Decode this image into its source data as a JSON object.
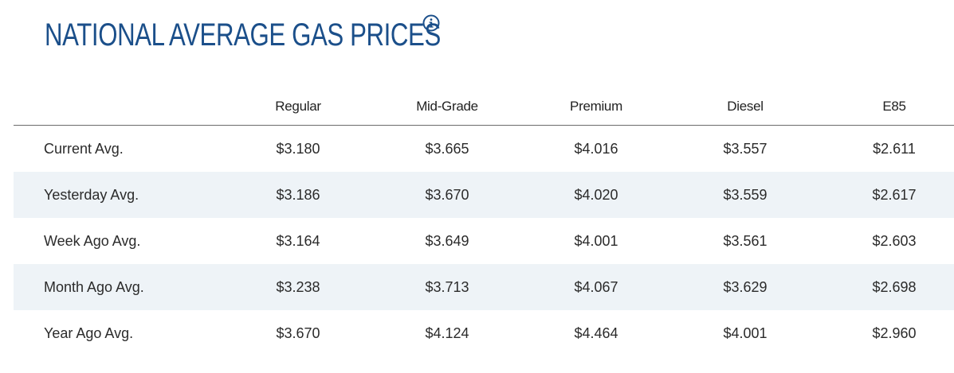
{
  "header": {
    "title": "NATIONAL AVERAGE GAS PRICES",
    "info_icon": "info-circle-icon",
    "title_color": "#1b4f8a"
  },
  "table": {
    "columns": [
      "Regular",
      "Mid-Grade",
      "Premium",
      "Diesel",
      "E85"
    ],
    "rows": [
      {
        "label": "Current Avg.",
        "values": [
          "$3.180",
          "$3.665",
          "$4.016",
          "$3.557",
          "$2.611"
        ]
      },
      {
        "label": "Yesterday Avg.",
        "values": [
          "$3.186",
          "$3.670",
          "$4.020",
          "$3.559",
          "$2.617"
        ]
      },
      {
        "label": "Week Ago Avg.",
        "values": [
          "$3.164",
          "$3.649",
          "$4.001",
          "$3.561",
          "$2.603"
        ]
      },
      {
        "label": "Month Ago Avg.",
        "values": [
          "$3.238",
          "$3.713",
          "$4.067",
          "$3.629",
          "$2.698"
        ]
      },
      {
        "label": "Year Ago Avg.",
        "values": [
          "$3.670",
          "$4.124",
          "$4.464",
          "$4.001",
          "$2.960"
        ]
      }
    ],
    "shaded_row_color": "#eef3f7"
  }
}
